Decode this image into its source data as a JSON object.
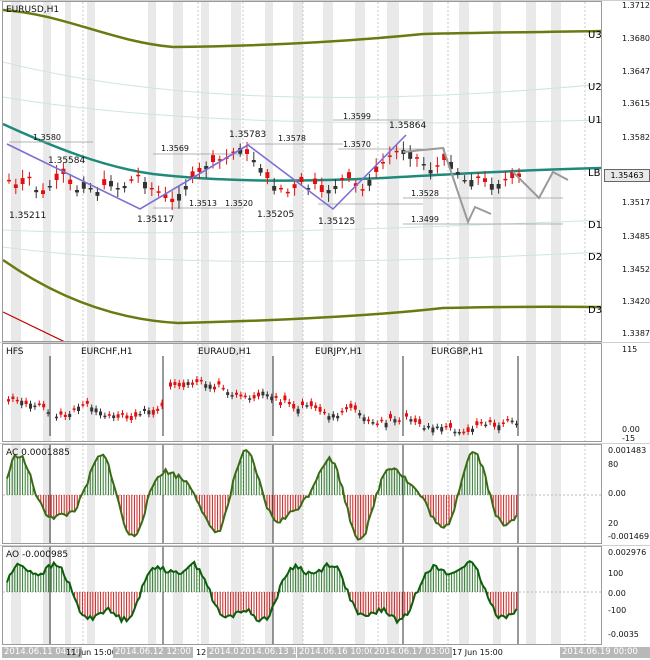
{
  "main": {
    "title": "EURUSD,H1",
    "price_ticks": [
      "1.37129",
      "1.36804",
      "1.36479",
      "1.36154",
      "1.35829",
      "1.35463",
      "1.35177",
      "1.34854",
      "1.34529",
      "1.34204",
      "1.33874"
    ],
    "current_price": "1.35463",
    "levels": [
      "U3",
      "U2",
      "U1",
      "LB",
      "D1",
      "D2",
      "D3"
    ],
    "point_labels": [
      "1.35211",
      "1.35584",
      "1.35117",
      "1.35783",
      "1.35205",
      "1.35125",
      "1.35864"
    ],
    "small_labels": [
      "1.3580",
      "1.3569",
      "1.3578",
      "1.3570",
      "1.3599",
      "1.3513",
      "1.3520",
      "1.3528",
      "1.3499"
    ]
  },
  "cross_pane": {
    "title": "HFS",
    "symbols": [
      "EURCHF,H1",
      "EURAUD,H1",
      "EURJPY,H1",
      "EURGBP,H1"
    ],
    "ticks": [
      "115",
      "0.00",
      "-15"
    ]
  },
  "ac_pane": {
    "title": "AC",
    "value": "0.0001885",
    "ticks": [
      "0.001483",
      "80",
      "0.00",
      "20",
      "-0.001469"
    ]
  },
  "ao_pane": {
    "title": "AO",
    "value": "-0.000985",
    "ticks": [
      "0.002976",
      "100",
      "0.00",
      "-100",
      "-0.0035"
    ]
  },
  "time_axis": [
    "2014.06.11 04:00",
    "11 Jun 15:00",
    "2014.06.12 12:00",
    "12",
    "2014.0",
    "2014.06.13 19:00",
    "2014.06.16 10:00",
    "2014.06.17 03:00",
    "17 Jun 15:00",
    "2014.06.19 00:00"
  ],
  "colors": {
    "envelope": "#6b7a10",
    "baseline": "#1f8a7a",
    "bull": "#333333",
    "bear": "#e01010",
    "zigzag": "#7b6fd6",
    "projection": "#9a9a9a",
    "ao_line": "#0c5e0c",
    "ac_line": "#3a6b14"
  }
}
